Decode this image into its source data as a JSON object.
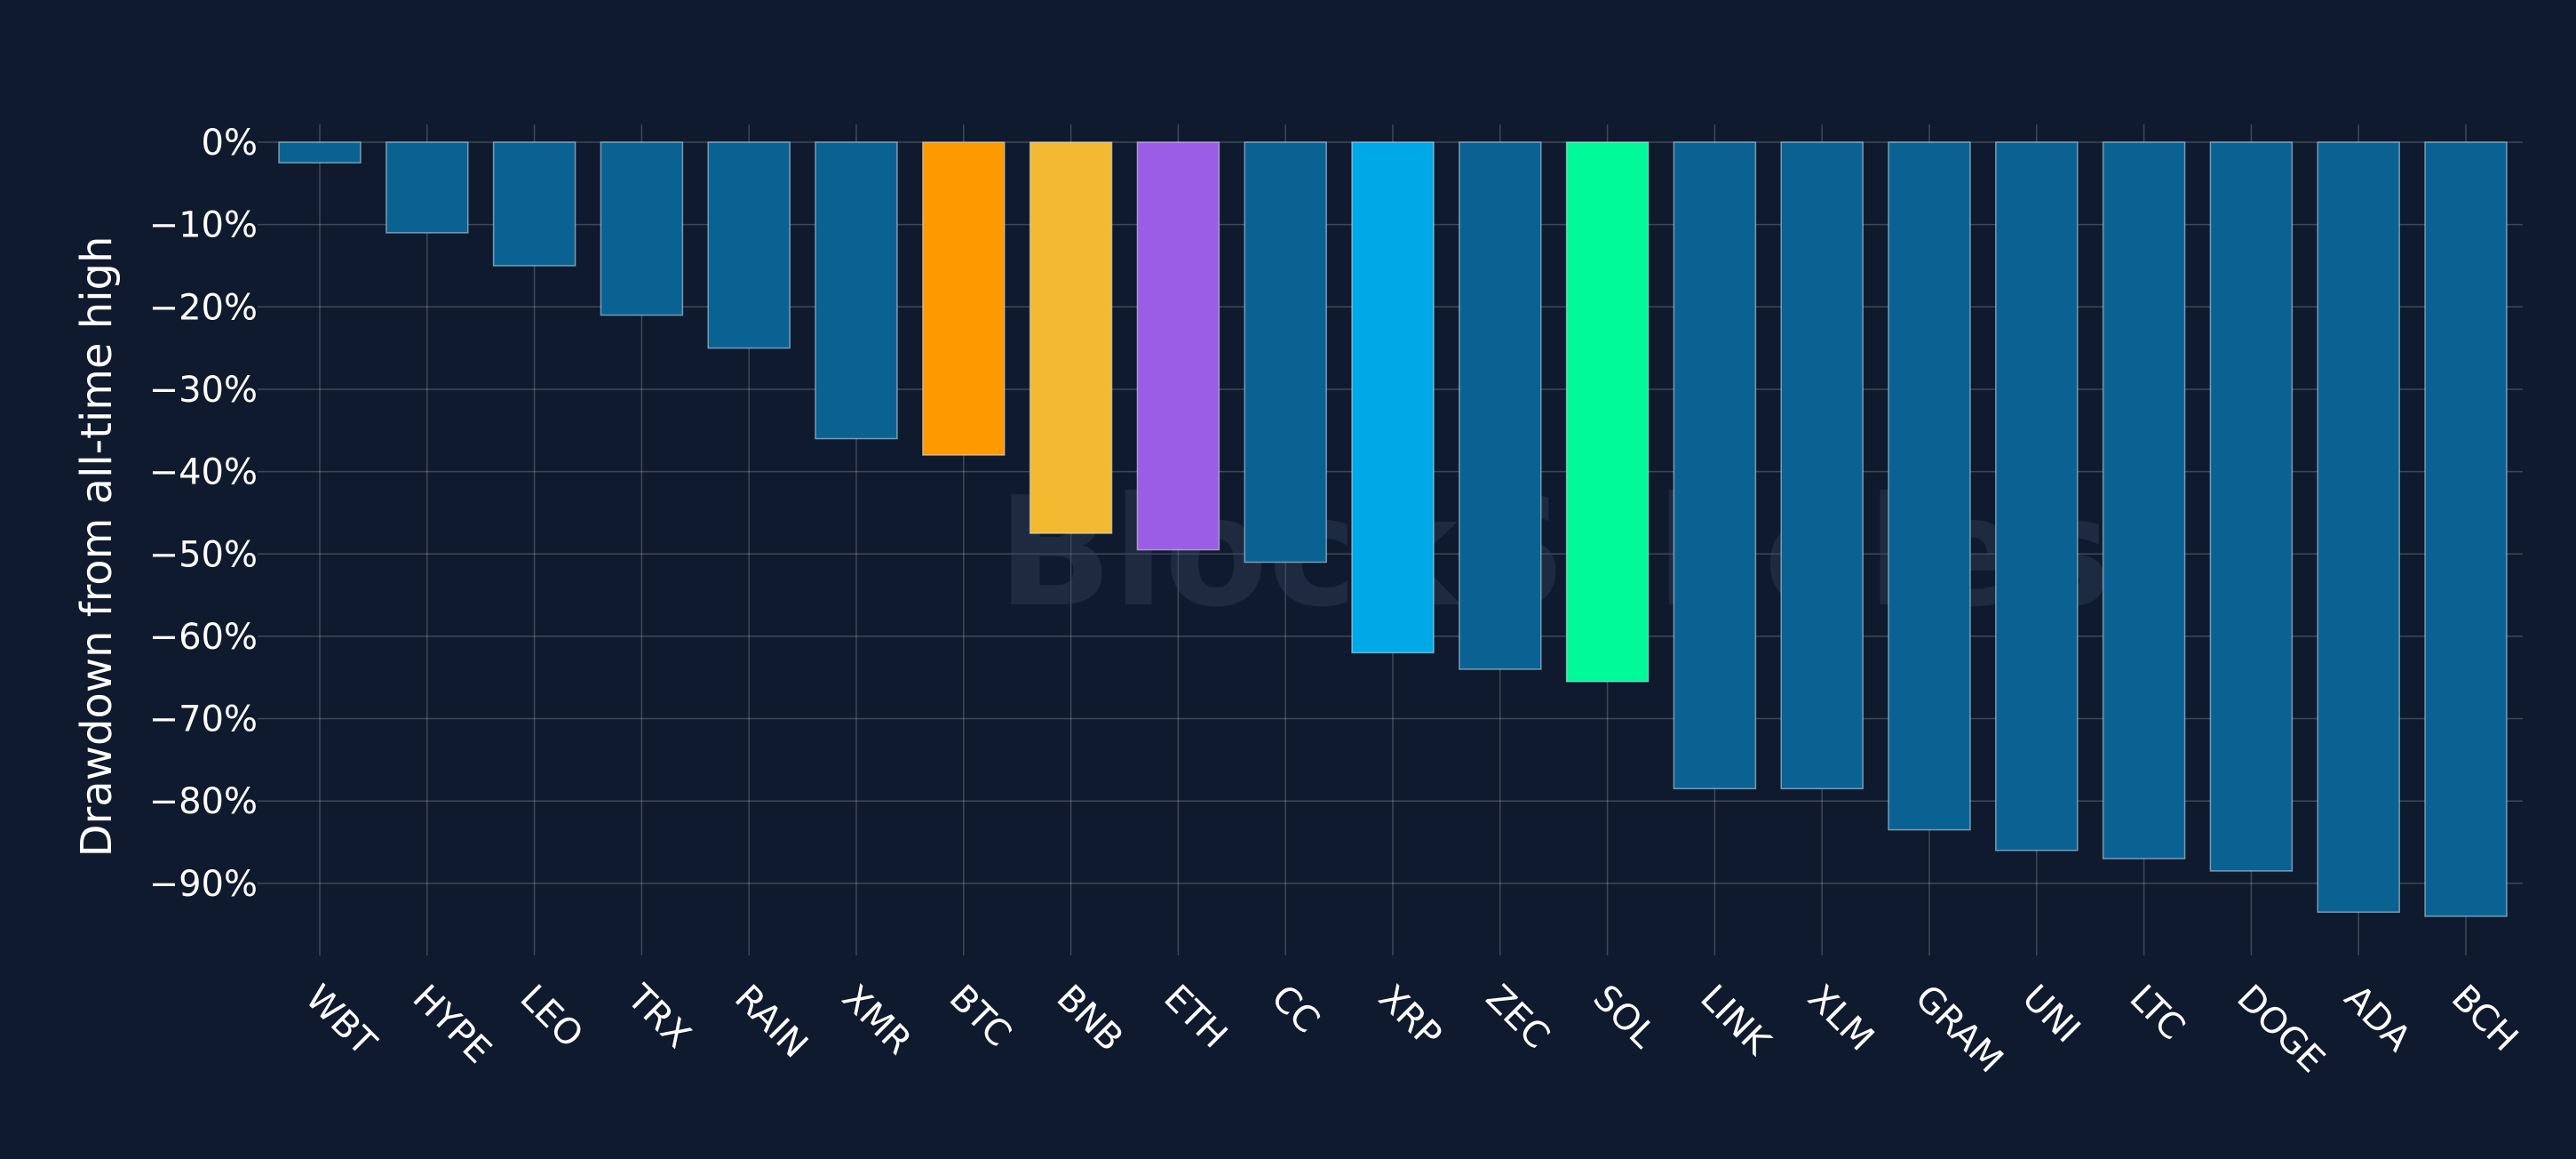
{
  "colors": {
    "background": "#101a2e",
    "default_bar": "#0a6293",
    "grid": "#ffffff",
    "text": "#ffffff",
    "BTC": "#ff9900",
    "BNB": "#f3b930",
    "ETH": "#9b5de5",
    "XRP": "#00a8e8",
    "SOL": "#00fa9a"
  },
  "watermark": "BlockScholes",
  "chart_data": {
    "type": "bar",
    "title": "",
    "xlabel": "",
    "ylabel": "Drawdown from all-time high",
    "ylim": [
      -100,
      0
    ],
    "grid": true,
    "legend": "none",
    "y_tick_values": [
      0,
      -10,
      -20,
      -30,
      -40,
      -50,
      -60,
      -70,
      -80,
      -90
    ],
    "y_tick_labels": [
      "0%",
      "−10%",
      "−20%",
      "−30%",
      "−40%",
      "−50%",
      "−60%",
      "−70%",
      "−80%",
      "−90%"
    ],
    "categories": [
      "WBT",
      "HYPE",
      "LEO",
      "TRX",
      "RAIN",
      "XMR",
      "BTC",
      "BNB",
      "ETH",
      "CC",
      "XRP",
      "ZEC",
      "SOL",
      "LINK",
      "XLM",
      "GRAM",
      "UNI",
      "LTC",
      "DOGE",
      "ADA",
      "BCH"
    ],
    "values": [
      -2.5,
      -11,
      -15,
      -21,
      -25,
      -36,
      -38,
      -47.5,
      -49.5,
      -51,
      -62,
      -64,
      -65.5,
      -78.5,
      -78.5,
      -83.5,
      -86,
      -87,
      -88.5,
      -93.5,
      -94
    ]
  }
}
